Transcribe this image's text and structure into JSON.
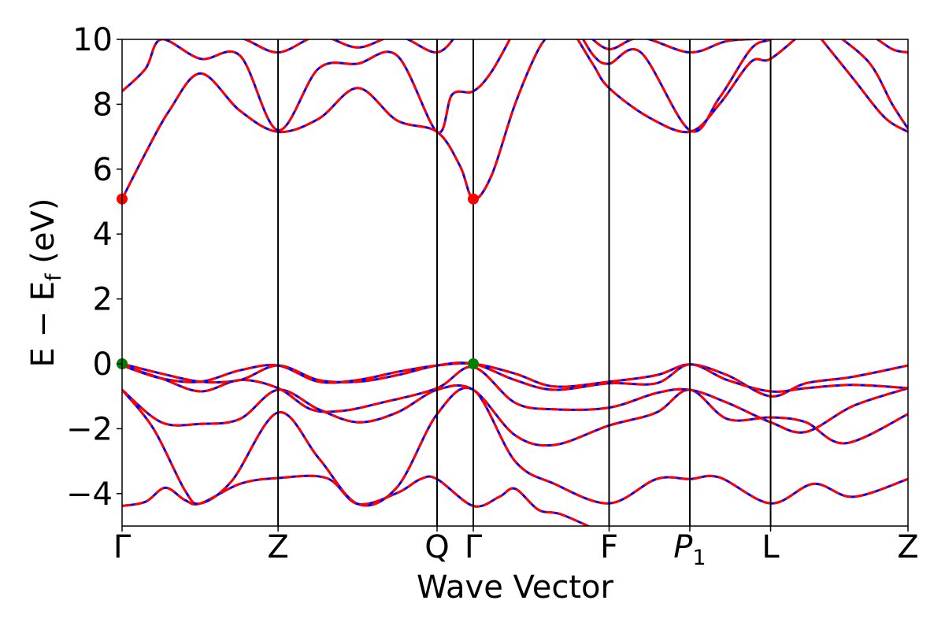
{
  "chart_data": {
    "type": "line",
    "xlabel": "Wave Vector",
    "ylabel_main": "E − E",
    "ylabel_sub": "f",
    "ylabel_tail": " (eV)",
    "ylim": [
      -5,
      10
    ],
    "yticks": [
      -4,
      -2,
      0,
      2,
      4,
      6,
      8,
      10
    ],
    "ytick_labels": [
      "−4",
      "−2",
      "0",
      "2",
      "4",
      "6",
      "8",
      "10"
    ],
    "xlim": [
      0,
      1
    ],
    "kpoints": [
      {
        "label": "Γ",
        "sub": "",
        "x": 0.0
      },
      {
        "label": "Z",
        "sub": "",
        "x": 0.1985
      },
      {
        "label": "Q",
        "sub": "",
        "x": 0.4008
      },
      {
        "label": "Γ",
        "sub": "",
        "x": 0.4469
      },
      {
        "label": "F",
        "sub": "",
        "x": 0.6197
      },
      {
        "label": "P",
        "sub": "1",
        "x": 0.7224
      },
      {
        "label": "L",
        "sub": "",
        "x": 0.8252
      },
      {
        "label": "Z",
        "sub": "",
        "x": 1.0
      }
    ],
    "line_colors": {
      "band_solid": "#0000ff",
      "band_dashed": "#ff0000",
      "vertical": "#000000"
    },
    "markers": [
      {
        "name": "CBM",
        "color": "#ff0000",
        "x": 0.0,
        "y": 5.08
      },
      {
        "name": "CBM",
        "color": "#ff0000",
        "x": 0.4469,
        "y": 5.08
      },
      {
        "name": "VBM",
        "color": "#008000",
        "x": 0.0,
        "y": 0.0
      },
      {
        "name": "VBM",
        "color": "#008000",
        "x": 0.4469,
        "y": 0.0
      }
    ],
    "bands": [
      {
        "name": "valence band 1",
        "points": [
          [
            0.0,
            -4.38
          ],
          [
            0.03,
            -4.25
          ],
          [
            0.055,
            -3.82
          ],
          [
            0.08,
            -4.2
          ],
          [
            0.1,
            -4.3
          ],
          [
            0.15,
            -3.7
          ],
          [
            0.1985,
            -3.52
          ],
          [
            0.26,
            -3.52
          ],
          [
            0.3,
            -4.32
          ],
          [
            0.35,
            -3.98
          ],
          [
            0.38,
            -3.55
          ],
          [
            0.4008,
            -3.55
          ],
          [
            0.4469,
            -4.38
          ],
          [
            0.48,
            -4.1
          ],
          [
            0.5,
            -3.85
          ],
          [
            0.53,
            -4.5
          ],
          [
            0.56,
            -4.65
          ],
          [
            0.6197,
            -5.3
          ]
        ]
      },
      {
        "name": "valence band 2",
        "points": [
          [
            0.0,
            -0.8
          ],
          [
            0.04,
            -2.0
          ],
          [
            0.08,
            -3.9
          ],
          [
            0.1,
            -4.3
          ],
          [
            0.14,
            -3.6
          ],
          [
            0.1985,
            -1.5
          ],
          [
            0.25,
            -2.9
          ],
          [
            0.3,
            -4.32
          ],
          [
            0.35,
            -3.8
          ],
          [
            0.4008,
            -1.55
          ],
          [
            0.4469,
            -0.8
          ],
          [
            0.5,
            -3.0
          ],
          [
            0.55,
            -3.7
          ],
          [
            0.6197,
            -4.3
          ],
          [
            0.68,
            -3.55
          ],
          [
            0.7224,
            -3.55
          ],
          [
            0.76,
            -3.5
          ],
          [
            0.8252,
            -4.3
          ],
          [
            0.88,
            -3.7
          ],
          [
            0.93,
            -4.1
          ],
          [
            1.0,
            -3.55
          ]
        ]
      },
      {
        "name": "valence band 3",
        "points": [
          [
            0.0,
            -0.8
          ],
          [
            0.05,
            -1.8
          ],
          [
            0.1,
            -1.85
          ],
          [
            0.15,
            -1.7
          ],
          [
            0.1985,
            -0.8
          ],
          [
            0.25,
            -1.4
          ],
          [
            0.3,
            -1.8
          ],
          [
            0.35,
            -1.5
          ],
          [
            0.4008,
            -0.8
          ],
          [
            0.4469,
            -0.8
          ],
          [
            0.5,
            -2.2
          ],
          [
            0.55,
            -2.5
          ],
          [
            0.6197,
            -1.9
          ],
          [
            0.68,
            -1.5
          ],
          [
            0.7224,
            -0.8
          ],
          [
            0.77,
            -1.7
          ],
          [
            0.8252,
            -1.65
          ],
          [
            0.87,
            -1.8
          ],
          [
            0.92,
            -2.45
          ],
          [
            1.0,
            -1.55
          ]
        ]
      },
      {
        "name": "valence band 4",
        "points": [
          [
            0.0,
            -0.05
          ],
          [
            0.05,
            -0.45
          ],
          [
            0.1,
            -0.85
          ],
          [
            0.15,
            -0.5
          ],
          [
            0.1985,
            -0.75
          ],
          [
            0.24,
            -1.4
          ],
          [
            0.28,
            -1.45
          ],
          [
            0.33,
            -1.2
          ],
          [
            0.4008,
            -0.75
          ],
          [
            0.4469,
            -0.1
          ],
          [
            0.5,
            -1.2
          ],
          [
            0.55,
            -1.4
          ],
          [
            0.6197,
            -1.35
          ],
          [
            0.68,
            -0.9
          ],
          [
            0.7224,
            -0.8
          ],
          [
            0.77,
            -1.2
          ],
          [
            0.8252,
            -1.8
          ],
          [
            0.87,
            -2.1
          ],
          [
            0.93,
            -1.3
          ],
          [
            1.0,
            -0.75
          ]
        ]
      },
      {
        "name": "valence band 5",
        "points": [
          [
            0.0,
            -0.05
          ],
          [
            0.05,
            -0.45
          ],
          [
            0.1,
            -0.55
          ],
          [
            0.15,
            -0.2
          ],
          [
            0.1985,
            -0.05
          ],
          [
            0.25,
            -0.55
          ],
          [
            0.3,
            -0.5
          ],
          [
            0.35,
            -0.25
          ],
          [
            0.4008,
            -0.05
          ],
          [
            0.4469,
            0.0
          ],
          [
            0.5,
            -0.3
          ],
          [
            0.55,
            -0.7
          ],
          [
            0.6197,
            -0.55
          ],
          [
            0.68,
            -0.35
          ],
          [
            0.7224,
            -0.02
          ],
          [
            0.77,
            -0.35
          ],
          [
            0.8252,
            -1.0
          ],
          [
            0.87,
            -0.6
          ],
          [
            0.93,
            -0.4
          ],
          [
            1.0,
            -0.05
          ]
        ]
      },
      {
        "name": "valence band 6",
        "points": [
          [
            0.0,
            0.0
          ],
          [
            0.05,
            -0.3
          ],
          [
            0.1,
            -0.55
          ],
          [
            0.15,
            -0.5
          ],
          [
            0.1985,
            -0.05
          ],
          [
            0.25,
            -0.5
          ],
          [
            0.3,
            -0.55
          ],
          [
            0.35,
            -0.35
          ],
          [
            0.4008,
            -0.05
          ],
          [
            0.4469,
            0.0
          ],
          [
            0.5,
            -0.5
          ],
          [
            0.55,
            -0.8
          ],
          [
            0.6197,
            -0.6
          ],
          [
            0.68,
            -0.6
          ],
          [
            0.7224,
            -0.02
          ],
          [
            0.77,
            -0.5
          ],
          [
            0.8252,
            -0.85
          ],
          [
            0.87,
            -0.75
          ],
          [
            0.93,
            -0.65
          ],
          [
            1.0,
            -0.75
          ]
        ]
      },
      {
        "name": "conduction band 1",
        "points": [
          [
            0.0,
            5.08
          ],
          [
            0.03,
            6.5
          ],
          [
            0.06,
            7.8
          ],
          [
            0.1,
            8.95
          ],
          [
            0.15,
            7.8
          ],
          [
            0.1985,
            7.15
          ],
          [
            0.25,
            7.55
          ],
          [
            0.3,
            8.5
          ],
          [
            0.35,
            7.5
          ],
          [
            0.4008,
            7.15
          ],
          [
            0.43,
            6.1
          ],
          [
            0.4469,
            5.08
          ],
          [
            0.47,
            5.8
          ],
          [
            0.5,
            8.0
          ],
          [
            0.53,
            9.7
          ],
          [
            0.55,
            10.3
          ]
        ]
      },
      {
        "name": "conduction band 2",
        "points": [
          [
            0.0,
            8.4
          ],
          [
            0.03,
            9.1
          ],
          [
            0.05,
            10.0
          ],
          [
            0.1,
            9.4
          ],
          [
            0.15,
            9.5
          ],
          [
            0.1985,
            7.2
          ],
          [
            0.25,
            9.1
          ],
          [
            0.3,
            9.25
          ],
          [
            0.35,
            9.5
          ],
          [
            0.4008,
            7.15
          ],
          [
            0.42,
            8.3
          ],
          [
            0.4469,
            8.4
          ],
          [
            0.47,
            9.0
          ],
          [
            0.5,
            10.3
          ]
        ]
      },
      {
        "name": "conduction band 3",
        "points": [
          [
            0.0,
            10.4
          ],
          [
            0.05,
            10.05
          ],
          [
            0.1,
            10.1
          ],
          [
            0.15,
            10.05
          ],
          [
            0.1985,
            9.6
          ],
          [
            0.25,
            10.1
          ],
          [
            0.3,
            9.75
          ],
          [
            0.35,
            10.1
          ],
          [
            0.4008,
            9.6
          ],
          [
            0.43,
            10.3
          ]
        ]
      },
      {
        "name": "conduction band 4",
        "points": [
          [
            0.57,
            10.4
          ],
          [
            0.6,
            9.2
          ],
          [
            0.6197,
            8.5
          ],
          [
            0.67,
            7.6
          ],
          [
            0.7224,
            7.15
          ],
          [
            0.76,
            8.0
          ],
          [
            0.8,
            9.3
          ],
          [
            0.8252,
            9.4
          ],
          [
            0.87,
            10.3
          ]
        ]
      },
      {
        "name": "conduction band 5",
        "points": [
          [
            0.58,
            10.3
          ],
          [
            0.6,
            9.5
          ],
          [
            0.6197,
            9.25
          ],
          [
            0.66,
            9.6
          ],
          [
            0.7224,
            7.2
          ],
          [
            0.76,
            8.2
          ],
          [
            0.8,
            9.7
          ],
          [
            0.8252,
            10.0
          ],
          [
            0.85,
            10.3
          ]
        ]
      },
      {
        "name": "conduction band 6",
        "points": [
          [
            0.59,
            10.2
          ],
          [
            0.6197,
            9.7
          ],
          [
            0.66,
            10.05
          ],
          [
            0.7224,
            9.6
          ],
          [
            0.77,
            9.95
          ],
          [
            0.8252,
            10.05
          ],
          [
            0.85,
            10.3
          ]
        ]
      },
      {
        "name": "conduction band 7",
        "points": [
          [
            0.88,
            10.3
          ],
          [
            0.93,
            8.8
          ],
          [
            0.97,
            7.6
          ],
          [
            1.0,
            7.15
          ]
        ]
      },
      {
        "name": "conduction band 8",
        "points": [
          [
            0.9,
            10.3
          ],
          [
            0.95,
            9.3
          ],
          [
            0.98,
            8.0
          ],
          [
            1.0,
            7.25
          ]
        ]
      },
      {
        "name": "conduction band 9",
        "points": [
          [
            0.95,
            10.2
          ],
          [
            0.98,
            9.7
          ],
          [
            1.0,
            9.6
          ]
        ]
      }
    ]
  }
}
